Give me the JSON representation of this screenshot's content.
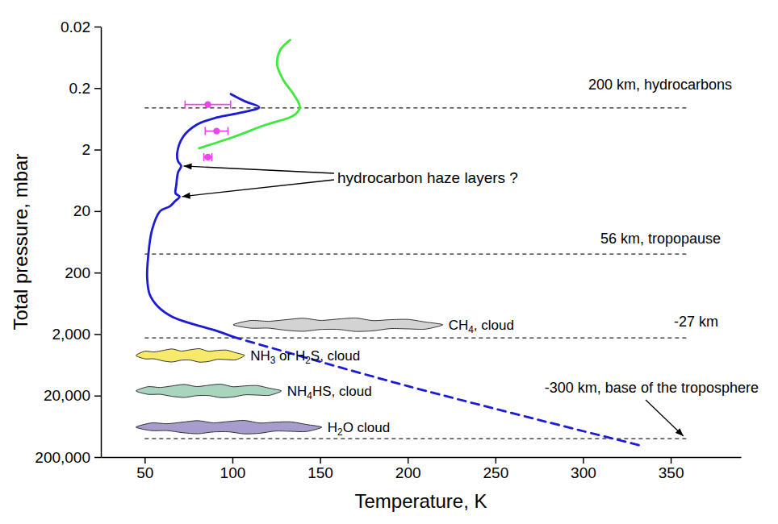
{
  "chart_data": {
    "type": "line",
    "xlabel": "Temperature, K",
    "ylabel": "Total pressure, mbar",
    "xlim": [
      25,
      390
    ],
    "xticks": [
      50,
      100,
      150,
      200,
      250,
      300,
      350
    ],
    "ylim": [
      200000,
      0.02
    ],
    "yticks": [
      0.02,
      0.2,
      2,
      20,
      200,
      {
        "value": 2000,
        "label": "2,000"
      },
      {
        "value": 20000,
        "label": "20,000"
      },
      {
        "value": 200000,
        "label": "200,000"
      }
    ],
    "log": "y",
    "grid": false,
    "series": [
      {
        "type": "line",
        "color": "#1c1cd8",
        "line_style": "solid",
        "x": [
          99.1,
          107.4,
          115.3,
          105,
          91.2,
          79.6,
          71.8,
          68.5,
          69,
          70.8,
          69,
          68,
          67.6,
          69.9,
          67.1,
          64.4,
          58.8,
          54.2,
          51.9,
          51.4,
          52.8,
          57.4,
          65.7,
          77.3,
          90.3,
          100.5
        ],
        "values": [
          0.25,
          0.33,
          0.41,
          0.5,
          0.6,
          0.79,
          1.25,
          2.3,
          3.1,
          3.7,
          4.7,
          7.6,
          10.3,
          11.6,
          14,
          16.7,
          20,
          40,
          115,
          245,
          450,
          706,
          1045,
          1370,
          1746,
          2222
        ]
      },
      {
        "type": "line",
        "color": "#1c1cd8",
        "line_style": "dashed",
        "x": [
          100.5,
          200,
          333
        ],
        "values": [
          2222,
          14000,
          130000
        ]
      },
      {
        "type": "line",
        "color": "#3ee83e",
        "line_style": "solid",
        "x": [
          81,
          100.5,
          119,
          135.2,
          138.4,
          135.2,
          129.2,
          125.5,
          127.3,
          132.9
        ],
        "values": [
          1.9,
          1.25,
          0.79,
          0.55,
          0.41,
          0.26,
          0.15,
          0.083,
          0.048,
          0.033
        ]
      },
      {
        "type": "scatter",
        "color": "#ee44ee",
        "marker": "circle",
        "x": [
          86,
          91,
          86
        ],
        "values": [
          0.37,
          1.0,
          2.65
        ],
        "x_errors": [
          13,
          6.5,
          2.3
        ]
      }
    ],
    "reference_lines": [
      {
        "text": "200 km, hydrocarbons",
        "y": 0.42,
        "x": [
          50,
          360
        ]
      },
      {
        "text": "56 km, tropopause",
        "y": 100,
        "x": [
          50,
          360
        ]
      },
      {
        "text": "-27 km",
        "y": 2300,
        "x": [
          50,
          360
        ]
      },
      {
        "text": "-300 km, base of the troposphere",
        "y": 100000,
        "x": [
          50,
          360
        ]
      }
    ],
    "clouds": [
      {
        "text": "CH4, cloud",
        "color": "#d3d3d3",
        "x": [
          100.5,
          220
        ],
        "y": 1410
      },
      {
        "text": "NH3 or H2S, cloud",
        "color": "#f7ea6a",
        "x": [
          45,
          107
        ],
        "y": 4450
      },
      {
        "text": "NH4HS, cloud",
        "color": "#a9d4bd",
        "x": [
          45,
          128
        ],
        "y": 16800
      },
      {
        "text": "H2O cloud",
        "color": "#a89ccd",
        "x": [
          45,
          151
        ],
        "y": 65300
      }
    ],
    "arrow_note": {
      "text": "hydrocarbon haze layers ?",
      "x": [
        70.8,
        69.9
      ],
      "y": [
        3.7,
        11.6
      ]
    }
  }
}
